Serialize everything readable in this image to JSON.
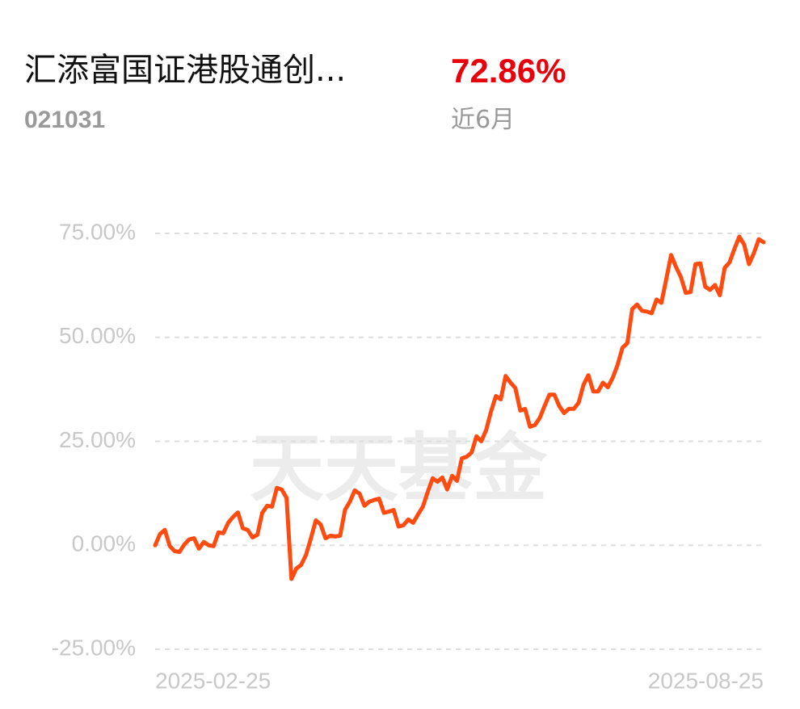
{
  "header": {
    "title": "汇添富国证港股通创...",
    "return": "72.86%",
    "code": "021031",
    "period": "近6月"
  },
  "chart_data": {
    "type": "line",
    "watermark": "天天基金",
    "categories": [
      "2025-02-25",
      null,
      null,
      null,
      null,
      null,
      null,
      null,
      null,
      null,
      null,
      null,
      null,
      null,
      null,
      null,
      null,
      null,
      null,
      null,
      null,
      null,
      null,
      null,
      null,
      null,
      null,
      null,
      null,
      null,
      null,
      null,
      null,
      null,
      null,
      null,
      null,
      null,
      null,
      null,
      null,
      null,
      null,
      null,
      null,
      null,
      null,
      null,
      null,
      null,
      null,
      null,
      null,
      null,
      null,
      null,
      null,
      null,
      null,
      null,
      null,
      null,
      null,
      null,
      null,
      null,
      null,
      null,
      null,
      null,
      null,
      null,
      null,
      null,
      null,
      null,
      null,
      null,
      null,
      null,
      null,
      null,
      null,
      null,
      null,
      null,
      null,
      null,
      null,
      null,
      null,
      null,
      null,
      null,
      null,
      null,
      null,
      null,
      null,
      null,
      null,
      null,
      null,
      null,
      null,
      null,
      null,
      null,
      null,
      null,
      null,
      null,
      null,
      null,
      null,
      null,
      null,
      null,
      null,
      null,
      null,
      null,
      null,
      null,
      null,
      "2025-08-25"
    ],
    "series": [
      {
        "color": "#ff4a10",
        "values": [
          0,
          2.7,
          3.7,
          -0.2,
          -1.4,
          -1.6,
          0.2,
          1.4,
          1.7,
          -0.8,
          0.8,
          0,
          -0.2,
          3.1,
          2.9,
          5.4,
          6.8,
          7.9,
          4.1,
          3.7,
          1.9,
          2.5,
          7.8,
          9.5,
          9.3,
          13.8,
          13.4,
          11.4,
          -8.1,
          -5.6,
          -4.7,
          -2.3,
          1.7,
          6.0,
          5.0,
          1.7,
          2.3,
          2.1,
          2.3,
          8.5,
          10.5,
          13.2,
          12.4,
          9.5,
          10.5,
          10.9,
          11.2,
          7.8,
          8.1,
          8.5,
          4.5,
          4.8,
          6.2,
          5.4,
          7.4,
          9.3,
          12.8,
          16.1,
          15.3,
          16.3,
          13.4,
          16.7,
          15.5,
          20.9,
          21.3,
          22.3,
          26.2,
          25.0,
          27.7,
          32.2,
          35.9,
          35.1,
          40.7,
          39.1,
          37.8,
          32.4,
          32.8,
          28.5,
          28.9,
          30.6,
          33.5,
          36.2,
          36.2,
          33.5,
          31.8,
          32.8,
          32.8,
          34.3,
          38.6,
          40.9,
          37.0,
          37.0,
          39.1,
          38.0,
          40.3,
          43.4,
          47.5,
          48.6,
          56.8,
          57.9,
          56.4,
          56.2,
          55.8,
          59.1,
          58.3,
          64.0,
          69.8,
          66.9,
          64.5,
          60.7,
          60.9,
          67.6,
          67.8,
          62.2,
          61.4,
          62.6,
          60.1,
          66.7,
          68.0,
          71.3,
          74.2,
          72.3,
          67.6,
          70.3,
          73.6,
          72.86
        ]
      }
    ],
    "ylim": [
      -25,
      75
    ],
    "yticks": [
      {
        "value": -25,
        "label": "-25.00%"
      },
      {
        "value": 0,
        "label": "0.00%"
      },
      {
        "value": 25,
        "label": "25.00%"
      },
      {
        "value": 50,
        "label": "50.00%"
      },
      {
        "value": 75,
        "label": "75.00%"
      }
    ],
    "grid": true
  }
}
